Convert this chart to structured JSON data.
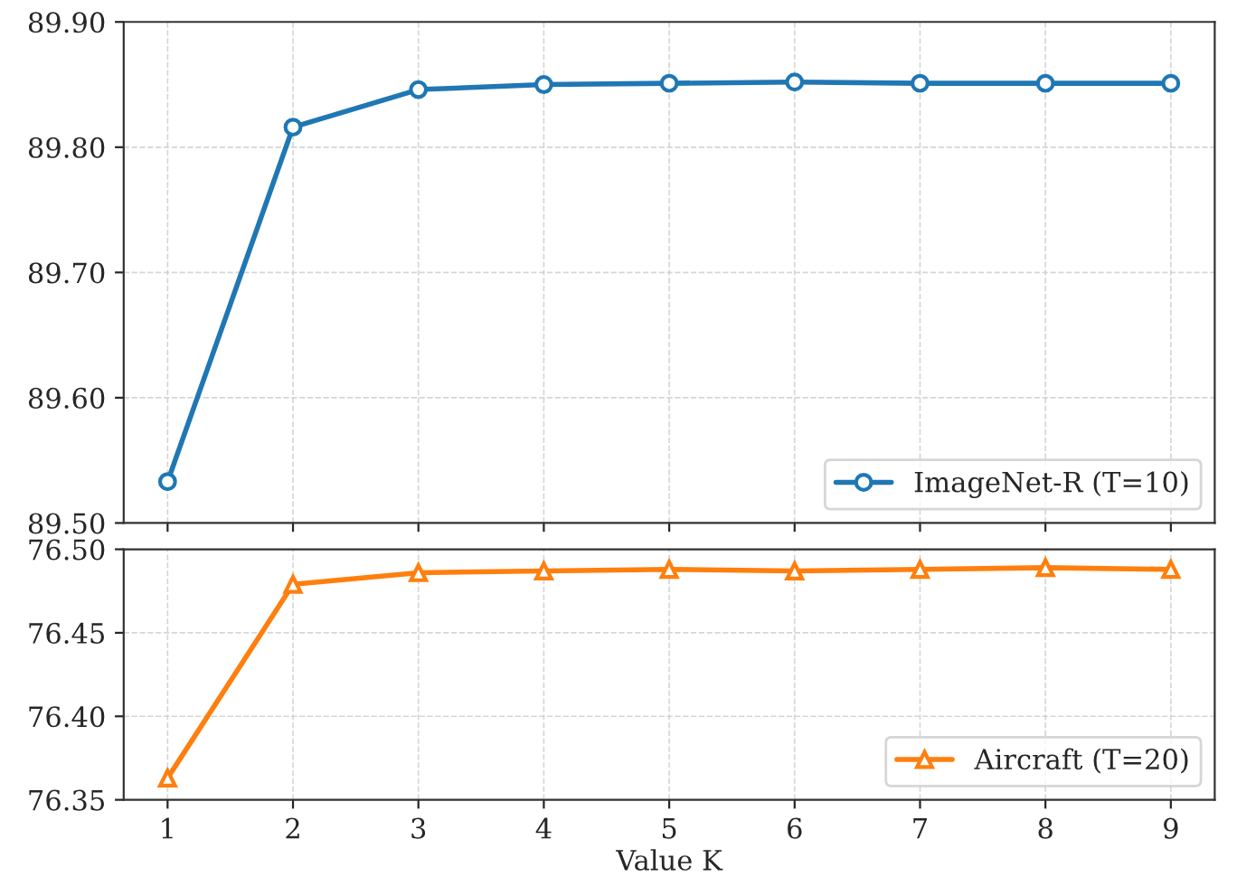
{
  "chart_data": [
    {
      "type": "line",
      "x": [
        1,
        2,
        3,
        4,
        5,
        6,
        7,
        8,
        9
      ],
      "series": [
        {
          "name": "ImageNet-R (T=10)",
          "color": "#1f77b4",
          "values": [
            89.533,
            89.816,
            89.846,
            89.85,
            89.851,
            89.852,
            89.851,
            89.851,
            89.851
          ]
        }
      ],
      "xlim": [
        0.65,
        9.35
      ],
      "xticks": [
        1,
        2,
        3,
        4,
        5,
        6,
        7,
        8,
        9
      ],
      "ylim": [
        89.5,
        89.9
      ],
      "yticks": [
        {
          "value": 89.5,
          "label": "89.50"
        },
        {
          "value": 89.6,
          "label": "89.60"
        },
        {
          "value": 89.7,
          "label": "89.70"
        },
        {
          "value": 89.8,
          "label": "89.80"
        },
        {
          "value": 89.9,
          "label": "89.90"
        }
      ],
      "tick_labels": "y",
      "grid": true,
      "legend": "bottom right",
      "marker": "circle",
      "line_style": "solid"
    },
    {
      "type": "line",
      "x": [
        1,
        2,
        3,
        4,
        5,
        6,
        7,
        8,
        9
      ],
      "series": [
        {
          "name": "Aircraft (T=20)",
          "color": "#ff7f0e",
          "values": [
            76.363,
            76.479,
            76.486,
            76.487,
            76.488,
            76.487,
            76.488,
            76.489,
            76.488
          ]
        }
      ],
      "xlim": [
        0.65,
        9.35
      ],
      "xticks": [
        1,
        2,
        3,
        4,
        5,
        6,
        7,
        8,
        9
      ],
      "xlabel": "Value K",
      "ylim": [
        76.35,
        76.5
      ],
      "yticks": [
        {
          "value": 76.35,
          "label": "76.35"
        },
        {
          "value": 76.4,
          "label": "76.40"
        },
        {
          "value": 76.45,
          "label": "76.45"
        },
        {
          "value": 76.5,
          "label": "76.50"
        }
      ],
      "grid": true,
      "legend": "bottom right",
      "marker": "triangle",
      "line_style": "solid"
    }
  ]
}
